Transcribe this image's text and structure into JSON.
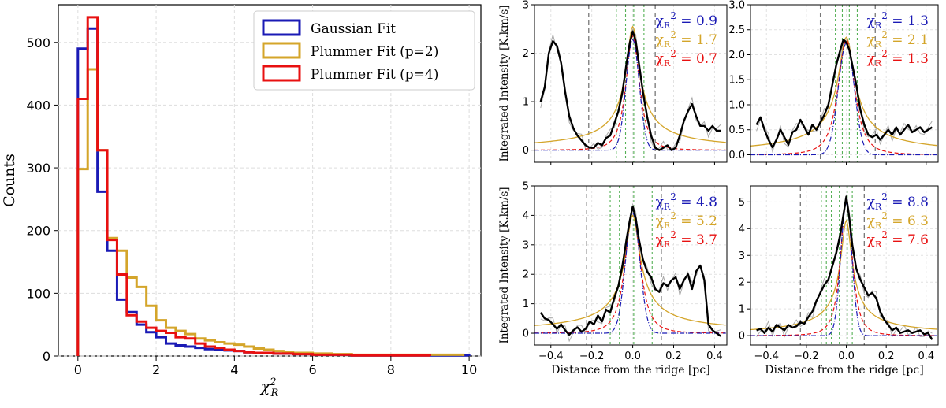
{
  "chart_data": [
    {
      "type": "histogram",
      "xlabel": "χ²_R",
      "ylabel": "Counts",
      "xlim": [
        -0.5,
        10.3
      ],
      "ylim": [
        0,
        560
      ],
      "xticks": [
        0,
        2,
        4,
        6,
        8,
        10
      ],
      "yticks": [
        0,
        100,
        200,
        300,
        400,
        500
      ],
      "grid": true,
      "legend_position": "top-right",
      "series": [
        {
          "name": "Gaussian Fit",
          "color": "#1a1ab5",
          "edges": [
            0,
            0.25,
            0.5,
            0.75,
            1.0,
            1.25,
            1.5,
            1.75,
            2.0,
            2.25,
            2.5,
            2.75,
            3.0,
            3.25,
            3.5,
            3.75,
            4.0,
            4.25,
            4.5,
            5.0,
            5.5,
            6.0,
            7.0,
            8.0,
            9.0,
            10.0
          ],
          "counts": [
            490,
            522,
            262,
            168,
            90,
            70,
            50,
            38,
            30,
            20,
            17,
            15,
            13,
            11,
            10,
            9,
            8,
            6,
            5,
            4,
            3,
            2,
            1,
            1,
            1
          ]
        },
        {
          "name": "Plummer Fit (p=2)",
          "color": "#d4a52a",
          "edges": [
            0,
            0.25,
            0.5,
            0.75,
            1.0,
            1.25,
            1.5,
            1.75,
            2.0,
            2.25,
            2.5,
            2.75,
            3.0,
            3.25,
            3.5,
            3.75,
            4.0,
            4.25,
            4.5,
            4.75,
            5.0,
            5.25,
            5.5,
            6.0,
            6.5,
            7.0,
            8.0,
            9.0,
            9.85
          ],
          "counts": [
            298,
            457,
            328,
            188,
            168,
            125,
            110,
            80,
            57,
            45,
            40,
            35,
            28,
            25,
            22,
            20,
            18,
            15,
            12,
            10,
            8,
            6,
            5,
            4,
            3,
            2,
            2,
            2
          ]
        },
        {
          "name": "Plummer Fit (p=4)",
          "color": "#e81010",
          "edges": [
            0,
            0.25,
            0.5,
            0.75,
            1.0,
            1.25,
            1.5,
            1.75,
            2.0,
            2.25,
            2.5,
            2.75,
            3.0,
            3.25,
            3.5,
            3.75,
            4.0,
            4.25,
            4.5,
            5.0,
            5.5,
            6.0,
            7.0,
            8.0,
            9.0
          ],
          "counts": [
            410,
            540,
            328,
            185,
            130,
            65,
            55,
            45,
            40,
            37,
            30,
            28,
            20,
            15,
            13,
            10,
            8,
            6,
            5,
            4,
            3,
            2,
            1,
            1
          ]
        }
      ]
    },
    {
      "type": "line",
      "ylabel": "Integrated Intensity [K.km/s]",
      "xlabel": "",
      "xlim": [
        -0.48,
        0.46
      ],
      "ylim": [
        -0.25,
        3.0
      ],
      "yticks": [
        0,
        1,
        2,
        3
      ],
      "xticks": [
        -0.4,
        -0.2,
        0.0,
        0.2,
        0.4
      ],
      "show_xtick_labels": false,
      "black_vlines": [
        -0.215,
        0.11
      ],
      "green_vlines": [
        -0.08,
        -0.035,
        0.005,
        0.055
      ],
      "peak": 2.35,
      "peak_plummer2": 2.55,
      "sigma": 0.032,
      "chi_values": [
        "= 0.9",
        "= 1.7",
        "= 0.7"
      ],
      "profile": [
        [
          -0.45,
          1.0
        ],
        [
          -0.43,
          1.3
        ],
        [
          -0.41,
          2.0
        ],
        [
          -0.39,
          2.25
        ],
        [
          -0.37,
          2.15
        ],
        [
          -0.35,
          1.8
        ],
        [
          -0.33,
          1.2
        ],
        [
          -0.31,
          0.7
        ],
        [
          -0.29,
          0.45
        ],
        [
          -0.27,
          0.3
        ],
        [
          -0.25,
          0.2
        ],
        [
          -0.23,
          0.1
        ],
        [
          -0.21,
          0.05
        ],
        [
          -0.19,
          0.05
        ],
        [
          -0.17,
          0.15
        ],
        [
          -0.15,
          0.1
        ],
        [
          -0.13,
          0.25
        ],
        [
          -0.11,
          0.3
        ],
        [
          -0.09,
          0.55
        ],
        [
          -0.07,
          0.8
        ],
        [
          -0.05,
          1.2
        ],
        [
          -0.03,
          1.8
        ],
        [
          -0.015,
          2.2
        ],
        [
          0.0,
          2.45
        ],
        [
          0.015,
          2.25
        ],
        [
          0.03,
          1.8
        ],
        [
          0.05,
          1.2
        ],
        [
          0.07,
          0.7
        ],
        [
          0.09,
          0.3
        ],
        [
          0.11,
          0.05
        ],
        [
          0.13,
          0.0
        ],
        [
          0.15,
          0.05
        ],
        [
          0.17,
          0.1
        ],
        [
          0.19,
          0.0
        ],
        [
          0.21,
          0.05
        ],
        [
          0.23,
          0.3
        ],
        [
          0.25,
          0.6
        ],
        [
          0.27,
          0.8
        ],
        [
          0.29,
          0.95
        ],
        [
          0.31,
          0.7
        ],
        [
          0.33,
          0.5
        ],
        [
          0.35,
          0.5
        ],
        [
          0.37,
          0.4
        ],
        [
          0.39,
          0.5
        ],
        [
          0.41,
          0.4
        ],
        [
          0.43,
          0.4
        ]
      ]
    },
    {
      "type": "line",
      "ylabel": "",
      "xlabel": "",
      "xlim": [
        -0.48,
        0.46
      ],
      "ylim": [
        -0.15,
        3.0
      ],
      "yticks": [
        0.0,
        0.5,
        1.0,
        1.5,
        2.0,
        2.5,
        3.0
      ],
      "xticks": [
        -0.4,
        -0.2,
        0.0,
        0.2,
        0.4
      ],
      "show_xtick_labels": false,
      "black_vlines": [
        -0.13,
        0.145
      ],
      "green_vlines": [
        -0.055,
        -0.02,
        0.015,
        0.055
      ],
      "peak": 2.3,
      "peak_plummer2": 2.35,
      "sigma": 0.04,
      "chi_values": [
        "= 1.3",
        "= 2.1",
        "= 1.3"
      ],
      "profile": [
        [
          -0.45,
          0.6
        ],
        [
          -0.43,
          0.75
        ],
        [
          -0.41,
          0.5
        ],
        [
          -0.39,
          0.3
        ],
        [
          -0.37,
          0.15
        ],
        [
          -0.35,
          0.3
        ],
        [
          -0.33,
          0.5
        ],
        [
          -0.31,
          0.35
        ],
        [
          -0.29,
          0.2
        ],
        [
          -0.27,
          0.45
        ],
        [
          -0.25,
          0.5
        ],
        [
          -0.23,
          0.7
        ],
        [
          -0.21,
          0.55
        ],
        [
          -0.19,
          0.4
        ],
        [
          -0.17,
          0.6
        ],
        [
          -0.15,
          0.5
        ],
        [
          -0.13,
          0.65
        ],
        [
          -0.11,
          0.8
        ],
        [
          -0.09,
          1.0
        ],
        [
          -0.07,
          1.4
        ],
        [
          -0.05,
          1.8
        ],
        [
          -0.03,
          2.1
        ],
        [
          -0.015,
          2.3
        ],
        [
          0.0,
          2.25
        ],
        [
          0.015,
          2.1
        ],
        [
          0.03,
          1.8
        ],
        [
          0.05,
          1.4
        ],
        [
          0.07,
          0.9
        ],
        [
          0.09,
          0.6
        ],
        [
          0.11,
          0.4
        ],
        [
          0.13,
          0.35
        ],
        [
          0.15,
          0.4
        ],
        [
          0.17,
          0.3
        ],
        [
          0.19,
          0.4
        ],
        [
          0.21,
          0.5
        ],
        [
          0.23,
          0.4
        ],
        [
          0.25,
          0.55
        ],
        [
          0.27,
          0.4
        ],
        [
          0.29,
          0.5
        ],
        [
          0.31,
          0.6
        ],
        [
          0.33,
          0.45
        ],
        [
          0.35,
          0.5
        ],
        [
          0.37,
          0.55
        ],
        [
          0.39,
          0.45
        ],
        [
          0.41,
          0.5
        ],
        [
          0.43,
          0.55
        ]
      ]
    },
    {
      "type": "line",
      "ylabel": "Integrated Intensity [K.km/s]",
      "xlabel": "Distance from the ridge [pc]",
      "xlim": [
        -0.48,
        0.46
      ],
      "ylim": [
        -0.4,
        5.0
      ],
      "yticks": [
        0,
        1,
        2,
        3,
        4,
        5
      ],
      "xticks": [
        -0.4,
        -0.2,
        0.0,
        0.2,
        0.4
      ],
      "xtick_labels": [
        "−0.4",
        "−0.2",
        "0.0",
        "0.2",
        "0.4"
      ],
      "show_xtick_labels": true,
      "black_vlines": [
        -0.225,
        0.14
      ],
      "green_vlines": [
        -0.11,
        -0.065,
        0.005,
        0.095
      ],
      "peak": 4.2,
      "peak_plummer2": 4.0,
      "sigma": 0.035,
      "chi_values": [
        "= 4.8",
        "= 5.2",
        "= 3.7"
      ],
      "profile": [
        [
          -0.45,
          0.7
        ],
        [
          -0.43,
          0.5
        ],
        [
          -0.41,
          0.45
        ],
        [
          -0.39,
          0.3
        ],
        [
          -0.37,
          0.15
        ],
        [
          -0.35,
          0.3
        ],
        [
          -0.33,
          0.1
        ],
        [
          -0.31,
          -0.05
        ],
        [
          -0.29,
          0.1
        ],
        [
          -0.27,
          0.2
        ],
        [
          -0.25,
          0.05
        ],
        [
          -0.23,
          0.15
        ],
        [
          -0.21,
          0.4
        ],
        [
          -0.19,
          0.3
        ],
        [
          -0.17,
          0.6
        ],
        [
          -0.15,
          0.4
        ],
        [
          -0.13,
          0.8
        ],
        [
          -0.11,
          0.7
        ],
        [
          -0.09,
          1.2
        ],
        [
          -0.07,
          1.6
        ],
        [
          -0.05,
          2.3
        ],
        [
          -0.03,
          3.2
        ],
        [
          -0.015,
          3.8
        ],
        [
          0.0,
          4.3
        ],
        [
          0.015,
          3.9
        ],
        [
          0.03,
          3.2
        ],
        [
          0.05,
          2.5
        ],
        [
          0.07,
          2.1
        ],
        [
          0.09,
          1.9
        ],
        [
          0.11,
          1.5
        ],
        [
          0.13,
          1.4
        ],
        [
          0.15,
          1.7
        ],
        [
          0.17,
          1.6
        ],
        [
          0.19,
          1.8
        ],
        [
          0.21,
          1.9
        ],
        [
          0.23,
          1.5
        ],
        [
          0.25,
          1.8
        ],
        [
          0.27,
          2.0
        ],
        [
          0.29,
          1.5
        ],
        [
          0.31,
          2.1
        ],
        [
          0.33,
          2.3
        ],
        [
          0.35,
          1.8
        ],
        [
          0.37,
          0.3
        ],
        [
          0.39,
          0.1
        ],
        [
          0.41,
          0.0
        ],
        [
          0.43,
          -0.1
        ]
      ]
    },
    {
      "type": "line",
      "ylabel": "",
      "xlabel": "Distance from the ridge [pc]",
      "xlim": [
        -0.48,
        0.46
      ],
      "ylim": [
        -0.35,
        5.6
      ],
      "yticks": [
        0,
        1,
        2,
        3,
        4,
        5
      ],
      "xticks": [
        -0.4,
        -0.2,
        0.0,
        0.2,
        0.4
      ],
      "xtick_labels": [
        "−0.4",
        "−0.2",
        "0.0",
        "0.2",
        "0.4"
      ],
      "show_xtick_labels": true,
      "black_vlines": [
        -0.23,
        0.09
      ],
      "green_vlines": [
        -0.125,
        -0.1,
        -0.075,
        -0.035,
        0.005,
        0.03
      ],
      "peak": 5.1,
      "peak_plummer2": 4.3,
      "sigma": 0.028,
      "chi_values": [
        "= 8.8",
        "= 6.3",
        "= 7.6"
      ],
      "profile": [
        [
          -0.45,
          0.2
        ],
        [
          -0.43,
          0.25
        ],
        [
          -0.41,
          0.1
        ],
        [
          -0.39,
          0.3
        ],
        [
          -0.37,
          0.15
        ],
        [
          -0.35,
          0.4
        ],
        [
          -0.33,
          0.3
        ],
        [
          -0.31,
          0.2
        ],
        [
          -0.29,
          0.4
        ],
        [
          -0.27,
          0.3
        ],
        [
          -0.25,
          0.35
        ],
        [
          -0.23,
          0.5
        ],
        [
          -0.21,
          0.45
        ],
        [
          -0.19,
          0.7
        ],
        [
          -0.17,
          0.9
        ],
        [
          -0.15,
          1.3
        ],
        [
          -0.13,
          1.6
        ],
        [
          -0.11,
          1.9
        ],
        [
          -0.09,
          2.1
        ],
        [
          -0.07,
          2.6
        ],
        [
          -0.05,
          3.1
        ],
        [
          -0.03,
          3.8
        ],
        [
          -0.015,
          4.5
        ],
        [
          0.0,
          5.2
        ],
        [
          0.015,
          4.4
        ],
        [
          0.03,
          3.4
        ],
        [
          0.05,
          2.5
        ],
        [
          0.07,
          2.1
        ],
        [
          0.09,
          1.8
        ],
        [
          0.11,
          1.5
        ],
        [
          0.13,
          1.6
        ],
        [
          0.15,
          1.4
        ],
        [
          0.17,
          0.9
        ],
        [
          0.19,
          0.6
        ],
        [
          0.21,
          0.4
        ],
        [
          0.23,
          0.2
        ],
        [
          0.25,
          0.3
        ],
        [
          0.27,
          0.1
        ],
        [
          0.29,
          0.15
        ],
        [
          0.31,
          0.2
        ],
        [
          0.33,
          0.1
        ],
        [
          0.35,
          0.15
        ],
        [
          0.37,
          0.2
        ],
        [
          0.39,
          0.05
        ],
        [
          0.41,
          0.1
        ],
        [
          0.43,
          -0.15
        ]
      ]
    }
  ],
  "chi_label": "χR",
  "chi_sup": "2",
  "chi_colors": [
    "#1a1ab5",
    "#d4a52a",
    "#e81010"
  ],
  "colors": {
    "gaussian": "#1a1ab5",
    "plummer2": "#d4a52a",
    "plummer4": "#e81010",
    "green": "#55b055",
    "profile": "#000000",
    "raw": "#aaaaaa"
  }
}
